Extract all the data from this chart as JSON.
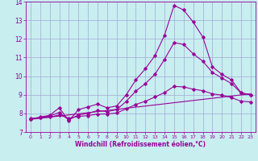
{
  "xlabel": "Windchill (Refroidissement éolien,°C)",
  "bg_color": "#c8eef0",
  "line_color": "#990099",
  "grid_color": "#9999cc",
  "xlim": [
    -0.5,
    23.5
  ],
  "ylim": [
    7,
    14
  ],
  "xticks": [
    0,
    1,
    2,
    3,
    4,
    5,
    6,
    7,
    8,
    9,
    10,
    11,
    12,
    13,
    14,
    15,
    16,
    17,
    18,
    19,
    20,
    21,
    22,
    23
  ],
  "yticks": [
    7,
    8,
    9,
    10,
    11,
    12,
    13,
    14
  ],
  "curve1_x": [
    0,
    1,
    2,
    3,
    4,
    5,
    6,
    7,
    8,
    9,
    10,
    11,
    12,
    13,
    14,
    15,
    16,
    17,
    18,
    19,
    20,
    21,
    22,
    23
  ],
  "curve1_y": [
    7.7,
    7.8,
    7.9,
    8.3,
    7.6,
    8.2,
    8.35,
    8.5,
    8.3,
    8.4,
    9.0,
    9.8,
    10.4,
    11.1,
    12.2,
    13.8,
    13.55,
    12.9,
    12.1,
    10.5,
    10.1,
    9.8,
    9.1,
    9.0
  ],
  "curve2_x": [
    0,
    1,
    2,
    3,
    4,
    5,
    6,
    7,
    8,
    9,
    10,
    11,
    12,
    13,
    14,
    15,
    16,
    17,
    18,
    19,
    20,
    21,
    22,
    23
  ],
  "curve2_y": [
    7.7,
    7.78,
    7.86,
    8.05,
    7.65,
    7.92,
    8.0,
    8.15,
    8.1,
    8.2,
    8.65,
    9.2,
    9.6,
    10.1,
    10.9,
    11.8,
    11.7,
    11.2,
    10.8,
    10.2,
    9.9,
    9.6,
    9.1,
    9.0
  ],
  "curve3_x": [
    0,
    1,
    2,
    3,
    4,
    5,
    6,
    7,
    8,
    9,
    10,
    11,
    12,
    13,
    14,
    15,
    16,
    17,
    18,
    19,
    20,
    21,
    22,
    23
  ],
  "curve3_y": [
    7.72,
    7.76,
    7.8,
    7.92,
    7.74,
    7.84,
    7.88,
    7.96,
    7.97,
    8.02,
    8.25,
    8.48,
    8.65,
    8.88,
    9.12,
    9.45,
    9.42,
    9.3,
    9.22,
    9.05,
    8.98,
    8.85,
    8.65,
    8.62
  ],
  "curve4_x": [
    0,
    23
  ],
  "curve4_y": [
    7.68,
    9.05
  ]
}
